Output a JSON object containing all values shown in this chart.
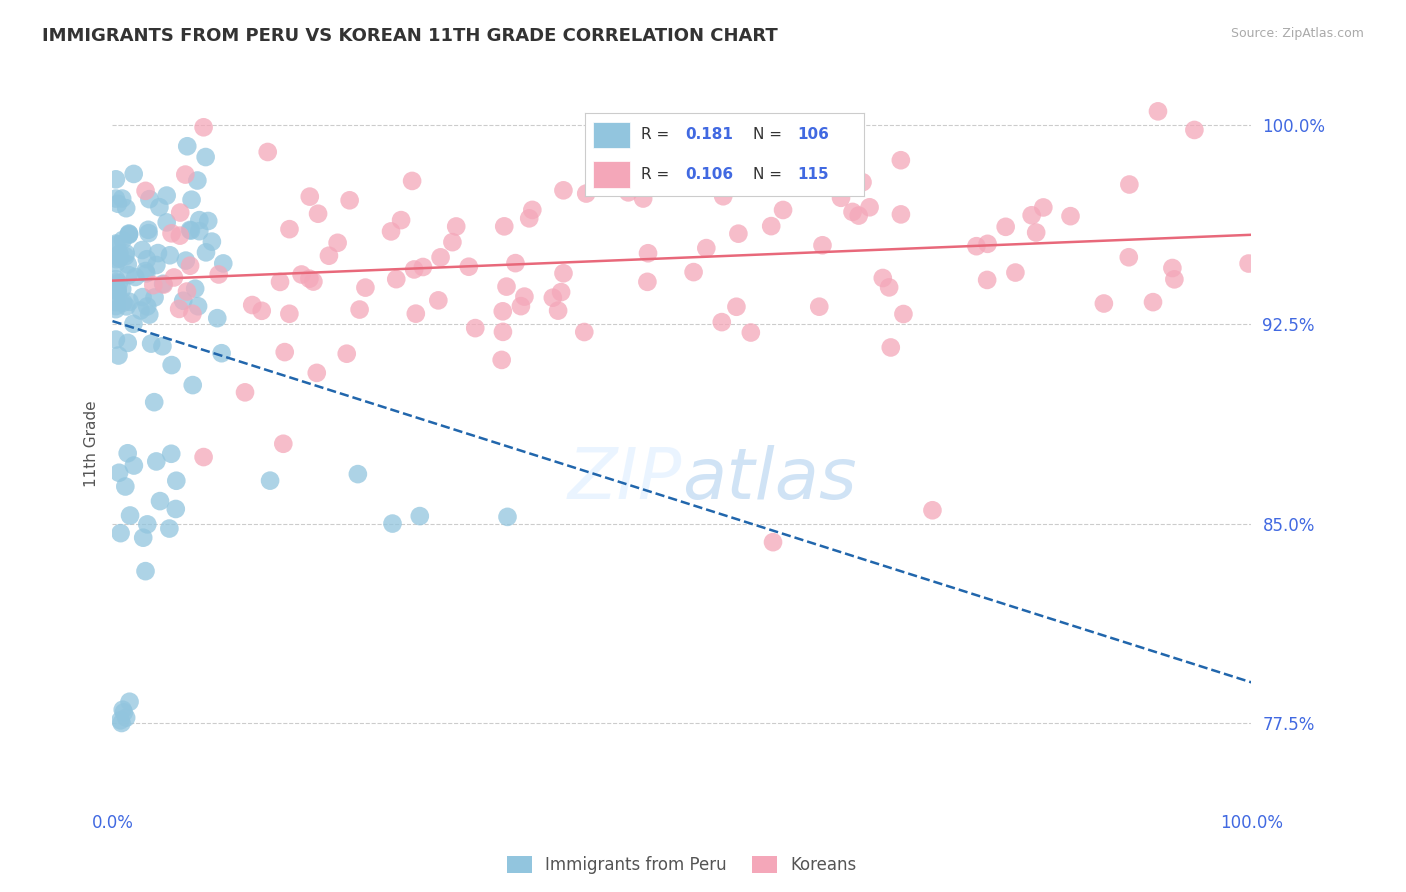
{
  "title": "IMMIGRANTS FROM PERU VS KOREAN 11TH GRADE CORRELATION CHART",
  "source": "Source: ZipAtlas.com",
  "ylabel": "11th Grade",
  "legend_blue_R": "0.181",
  "legend_blue_N": "106",
  "legend_pink_R": "0.106",
  "legend_pink_N": "115",
  "blue_color": "#92c5de",
  "pink_color": "#f4a7b9",
  "blue_line_color": "#2166ac",
  "pink_line_color": "#e8687a",
  "grid_color": "#cccccc",
  "text_color": "#4169E1",
  "title_color": "#333333",
  "ytick_positions": [
    0.775,
    0.85,
    0.925,
    1.0
  ],
  "ytick_labels": [
    "77.5%",
    "85.0%",
    "92.5%",
    "100.0%"
  ],
  "xlim": [
    0.0,
    1.0
  ],
  "ylim": [
    0.745,
    1.015
  ]
}
